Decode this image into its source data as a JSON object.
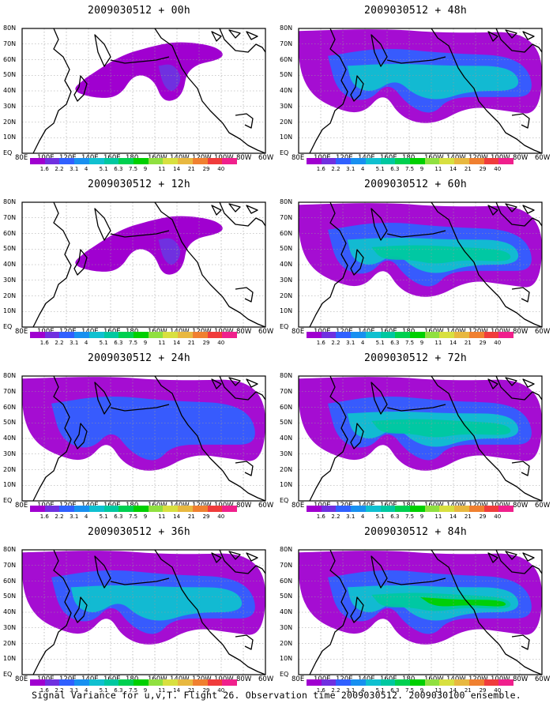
{
  "panels": [
    {
      "title": "2009030512 + 00h",
      "level": 0
    },
    {
      "title": "2009030512 + 48h",
      "level": 2
    },
    {
      "title": "2009030512 + 12h",
      "level": 0
    },
    {
      "title": "2009030512 + 60h",
      "level": 3
    },
    {
      "title": "2009030512 + 24h",
      "level": 1
    },
    {
      "title": "2009030512 + 72h",
      "level": 3
    },
    {
      "title": "2009030512 + 36h",
      "level": 2
    },
    {
      "title": "2009030512 + 84h",
      "level": 4
    }
  ],
  "y_axis_labels": [
    "80N",
    "70N",
    "60N",
    "50N",
    "40N",
    "30N",
    "20N",
    "10N",
    "EQ"
  ],
  "x_axis_labels": [
    "80E",
    "100E",
    "120E",
    "140E",
    "160E",
    "180",
    "160W",
    "140W",
    "120W",
    "100W",
    "80W",
    "60W"
  ],
  "colorbar": {
    "labels": [
      "1.6",
      "2.2",
      "3.1",
      "4",
      "5.1",
      "6.3",
      "7.5",
      "9",
      "11",
      "14",
      "21",
      "29",
      "40"
    ],
    "colors": [
      "#a000d0",
      "#7030e0",
      "#3060ff",
      "#1890f0",
      "#10c0d0",
      "#00c8a0",
      "#00d050",
      "#00d000",
      "#90e040",
      "#d8e040",
      "#e8b840",
      "#f08030",
      "#f03c3c",
      "#f0208c"
    ]
  },
  "footer": "Signal Variance for u,v,T. Flight 26. Observation time 2009030512. 2009030100 ensemble."
}
